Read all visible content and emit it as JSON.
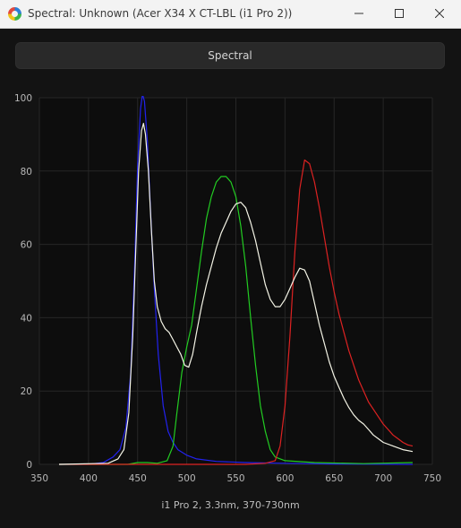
{
  "window": {
    "title": "Spectral: Unknown (Acer X34 X CT-LBL (i1 Pro 2))"
  },
  "tab": {
    "label": "Spectral"
  },
  "chart_data": {
    "type": "line",
    "title": "",
    "xlabel": "i1 Pro 2, 3.3nm, 370-730nm",
    "ylabel": "",
    "xlim": [
      350,
      750
    ],
    "ylim": [
      0,
      100
    ],
    "xticks": [
      350,
      400,
      450,
      500,
      550,
      600,
      650,
      700,
      750
    ],
    "yticks": [
      0,
      20,
      40,
      60,
      80,
      100
    ],
    "grid": true,
    "series": [
      {
        "color": "#2222ee",
        "points": [
          [
            370,
            0
          ],
          [
            400,
            0
          ],
          [
            415,
            0.5
          ],
          [
            425,
            2
          ],
          [
            432,
            4
          ],
          [
            438,
            10
          ],
          [
            443,
            25
          ],
          [
            447,
            55
          ],
          [
            450,
            82
          ],
          [
            453,
            97
          ],
          [
            455,
            101
          ],
          [
            457,
            99
          ],
          [
            460,
            88
          ],
          [
            463,
            70
          ],
          [
            467,
            48
          ],
          [
            471,
            30
          ],
          [
            476,
            16
          ],
          [
            481,
            9
          ],
          [
            486,
            6
          ],
          [
            491,
            4
          ],
          [
            500,
            2.5
          ],
          [
            510,
            1.5
          ],
          [
            530,
            0.8
          ],
          [
            560,
            0.5
          ],
          [
            600,
            0.3
          ],
          [
            650,
            0.1
          ],
          [
            730,
            0
          ]
        ]
      },
      {
        "color": "#22cc22",
        "points": [
          [
            370,
            0
          ],
          [
            440,
            0
          ],
          [
            450,
            0.5
          ],
          [
            460,
            0.5
          ],
          [
            470,
            0.3
          ],
          [
            480,
            1
          ],
          [
            486,
            5
          ],
          [
            490,
            14
          ],
          [
            495,
            25
          ],
          [
            500,
            32
          ],
          [
            505,
            38
          ],
          [
            510,
            48
          ],
          [
            515,
            58
          ],
          [
            520,
            67
          ],
          [
            525,
            73
          ],
          [
            530,
            77
          ],
          [
            535,
            78.5
          ],
          [
            540,
            78.5
          ],
          [
            545,
            77
          ],
          [
            550,
            73
          ],
          [
            555,
            65
          ],
          [
            560,
            54
          ],
          [
            565,
            40
          ],
          [
            570,
            27
          ],
          [
            575,
            16
          ],
          [
            580,
            9
          ],
          [
            585,
            4
          ],
          [
            590,
            2
          ],
          [
            600,
            1
          ],
          [
            630,
            0.5
          ],
          [
            680,
            0.2
          ],
          [
            730,
            0.5
          ]
        ]
      },
      {
        "color": "#dd2222",
        "points": [
          [
            370,
            0
          ],
          [
            560,
            0
          ],
          [
            580,
            0.3
          ],
          [
            590,
            1
          ],
          [
            595,
            5
          ],
          [
            600,
            16
          ],
          [
            605,
            35
          ],
          [
            610,
            58
          ],
          [
            615,
            75
          ],
          [
            620,
            83
          ],
          [
            625,
            82
          ],
          [
            630,
            77
          ],
          [
            635,
            70
          ],
          [
            640,
            62
          ],
          [
            645,
            54
          ],
          [
            650,
            47
          ],
          [
            655,
            41
          ],
          [
            660,
            36
          ],
          [
            665,
            31
          ],
          [
            670,
            27
          ],
          [
            675,
            23
          ],
          [
            680,
            20
          ],
          [
            685,
            17
          ],
          [
            690,
            15
          ],
          [
            695,
            13
          ],
          [
            700,
            11
          ],
          [
            705,
            9.5
          ],
          [
            710,
            8
          ],
          [
            715,
            7
          ],
          [
            720,
            6
          ],
          [
            725,
            5.3
          ],
          [
            730,
            5
          ]
        ]
      },
      {
        "color": "#f4f4e6",
        "points": [
          [
            370,
            0
          ],
          [
            420,
            0.3
          ],
          [
            430,
            1.5
          ],
          [
            436,
            4
          ],
          [
            441,
            14
          ],
          [
            445,
            35
          ],
          [
            448,
            58
          ],
          [
            451,
            80
          ],
          [
            454,
            91
          ],
          [
            456,
            93
          ],
          [
            458,
            90
          ],
          [
            461,
            80
          ],
          [
            464,
            64
          ],
          [
            467,
            50
          ],
          [
            470,
            43
          ],
          [
            474,
            39
          ],
          [
            478,
            37
          ],
          [
            482,
            36
          ],
          [
            486,
            34
          ],
          [
            490,
            32
          ],
          [
            494,
            30
          ],
          [
            498,
            27
          ],
          [
            502,
            26.5
          ],
          [
            506,
            30
          ],
          [
            510,
            36
          ],
          [
            515,
            43
          ],
          [
            520,
            49
          ],
          [
            525,
            54
          ],
          [
            530,
            59
          ],
          [
            535,
            63
          ],
          [
            540,
            66
          ],
          [
            545,
            69
          ],
          [
            550,
            71
          ],
          [
            555,
            71.5
          ],
          [
            560,
            70
          ],
          [
            565,
            66
          ],
          [
            570,
            61
          ],
          [
            575,
            55
          ],
          [
            580,
            49
          ],
          [
            585,
            45
          ],
          [
            590,
            43
          ],
          [
            595,
            43
          ],
          [
            600,
            45
          ],
          [
            605,
            48
          ],
          [
            610,
            51
          ],
          [
            615,
            53.5
          ],
          [
            620,
            53
          ],
          [
            625,
            50
          ],
          [
            630,
            44
          ],
          [
            635,
            38
          ],
          [
            640,
            33
          ],
          [
            645,
            28
          ],
          [
            650,
            24
          ],
          [
            655,
            21
          ],
          [
            660,
            18
          ],
          [
            665,
            15.5
          ],
          [
            670,
            13.5
          ],
          [
            675,
            12
          ],
          [
            680,
            11
          ],
          [
            685,
            9.5
          ],
          [
            690,
            8
          ],
          [
            695,
            7
          ],
          [
            700,
            6
          ],
          [
            710,
            5
          ],
          [
            720,
            4
          ],
          [
            730,
            3.5
          ]
        ]
      }
    ]
  }
}
